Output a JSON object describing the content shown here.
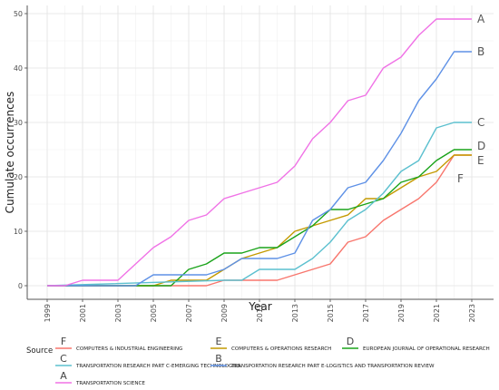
{
  "chart_data": {
    "type": "line",
    "title": "",
    "xlabel": "Year",
    "ylabel": "Cumulate occurrences",
    "xlim": [
      1999,
      2023
    ],
    "ylim": [
      0,
      50
    ],
    "x_ticks": [
      "1999",
      "2001",
      "2003",
      "2005",
      "2007",
      "2009",
      "2011",
      "2013",
      "2015",
      "2017",
      "2019",
      "2021",
      "2023"
    ],
    "y_ticks": [
      "0",
      "10",
      "20",
      "30",
      "40",
      "50"
    ],
    "grid": true,
    "legend": {
      "title": "Source",
      "placement": "bottom",
      "entries": [
        {
          "key": "F",
          "name": "COMPUTERS & INDUSTRIAL ENGINEERING"
        },
        {
          "key": "E",
          "name": "COMPUTERS & OPERATIONS RESEARCH"
        },
        {
          "key": "D",
          "name": "EUROPEAN JOURNAL OF OPERATIONAL RESEARCH"
        },
        {
          "key": "C",
          "name": "TRANSPORTATION RESEARCH PART C-EMERGING TECHNOLOGIES"
        },
        {
          "key": "B",
          "name": "TRANSPORTATION RESEARCH PART E-LOGISTICS AND TRANSPORTATION REVIEW"
        },
        {
          "key": "A",
          "name": "TRANSPORTATION SCIENCE"
        }
      ]
    },
    "series": [
      {
        "key": "F",
        "name": "COMPUTERS & INDUSTRIAL ENGINEERING",
        "color": "#f8766d",
        "x": [
          1999,
          2007,
          2008,
          2009,
          2010,
          2011,
          2012,
          2013,
          2014,
          2015,
          2016,
          2017,
          2018,
          2019,
          2020,
          2021,
          2022,
          2023
        ],
        "y": [
          0,
          0,
          0,
          1,
          1,
          1,
          1,
          2,
          3,
          4,
          8,
          9,
          12,
          14,
          16,
          19,
          24,
          24
        ]
      },
      {
        "key": "E",
        "name": "COMPUTERS & OPERATIONS RESEARCH",
        "color": "#c49a00",
        "x": [
          1999,
          2004,
          2005,
          2006,
          2007,
          2008,
          2009,
          2010,
          2011,
          2012,
          2013,
          2014,
          2015,
          2016,
          2017,
          2018,
          2019,
          2020,
          2021,
          2022,
          2023
        ],
        "y": [
          0,
          0,
          0,
          1,
          1,
          1,
          3,
          5,
          6,
          7,
          10,
          11,
          12,
          13,
          16,
          16,
          18,
          20,
          21,
          24,
          24
        ]
      },
      {
        "key": "D",
        "name": "EUROPEAN JOURNAL OF OPERATIONAL RESEARCH",
        "color": "#1aa31a",
        "x": [
          1999,
          2006,
          2007,
          2008,
          2009,
          2010,
          2011,
          2012,
          2013,
          2014,
          2015,
          2016,
          2017,
          2018,
          2019,
          2020,
          2021,
          2022,
          2023
        ],
        "y": [
          0,
          0,
          3,
          4,
          6,
          6,
          7,
          7,
          9,
          11,
          14,
          14,
          15,
          16,
          19,
          20,
          23,
          25,
          25
        ]
      },
      {
        "key": "C",
        "name": "TRANSPORTATION RESEARCH PART C-EMERGING TECHNOLOGIES",
        "color": "#5cc0cf",
        "x": [
          1999,
          2009,
          2010,
          2011,
          2012,
          2013,
          2014,
          2015,
          2016,
          2017,
          2018,
          2019,
          2020,
          2021,
          2022,
          2023
        ],
        "y": [
          0,
          1,
          1,
          3,
          3,
          3,
          5,
          8,
          12,
          14,
          17,
          21,
          23,
          29,
          30,
          30
        ]
      },
      {
        "key": "B",
        "name": "TRANSPORTATION RESEARCH PART E-LOGISTICS AND TRANSPORTATION REVIEW",
        "color": "#5e91e6",
        "x": [
          1999,
          2004,
          2005,
          2006,
          2007,
          2008,
          2009,
          2010,
          2011,
          2012,
          2013,
          2014,
          2015,
          2016,
          2017,
          2018,
          2019,
          2020,
          2021,
          2022,
          2023
        ],
        "y": [
          0,
          0,
          2,
          2,
          2,
          2,
          3,
          5,
          5,
          5,
          6,
          12,
          14,
          18,
          19,
          23,
          28,
          34,
          38,
          43,
          43
        ]
      },
      {
        "key": "A",
        "name": "TRANSPORTATION SCIENCE",
        "color": "#f072e6",
        "x": [
          1999,
          2000,
          2001,
          2002,
          2003,
          2004,
          2005,
          2006,
          2007,
          2008,
          2009,
          2010,
          2011,
          2012,
          2013,
          2014,
          2015,
          2016,
          2017,
          2018,
          2019,
          2020,
          2021,
          2022,
          2023
        ],
        "y": [
          0,
          0,
          1,
          1,
          1,
          4,
          7,
          9,
          12,
          13,
          16,
          17,
          18,
          19,
          22,
          27,
          30,
          34,
          35,
          40,
          42,
          46,
          49,
          49,
          49
        ]
      }
    ]
  }
}
